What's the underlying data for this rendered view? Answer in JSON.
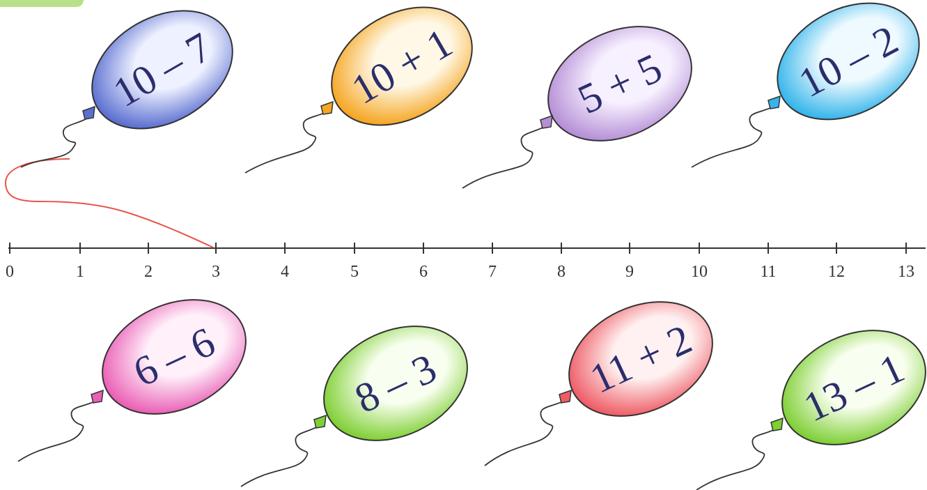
{
  "number_line": {
    "ticks": [
      "0",
      "1",
      "2",
      "3",
      "4",
      "5",
      "6",
      "7",
      "8",
      "9",
      "10",
      "11",
      "12",
      "13"
    ]
  },
  "balloons": [
    {
      "expr": "10 – 7",
      "color": "#5a6fd0",
      "light": "#eef1ff"
    },
    {
      "expr": "10 + 1",
      "color": "#f5a623",
      "light": "#fff8e6"
    },
    {
      "expr": "5 + 5",
      "color": "#b58fd6",
      "light": "#f7f0ff"
    },
    {
      "expr": "10 – 2",
      "color": "#35b5ea",
      "light": "#eefaff"
    },
    {
      "expr": "6 – 6",
      "color": "#ea5fb5",
      "light": "#fff0fa"
    },
    {
      "expr": "8 – 3",
      "color": "#7fcf35",
      "light": "#f9fff0"
    },
    {
      "expr": "11 + 2",
      "color": "#ee5c66",
      "light": "#fff1f1"
    },
    {
      "expr": "13 – 1",
      "color": "#7fcf35",
      "light": "#f9fff0"
    }
  ],
  "answer_line_color": "#e8554a",
  "number_line_color": "#333333"
}
